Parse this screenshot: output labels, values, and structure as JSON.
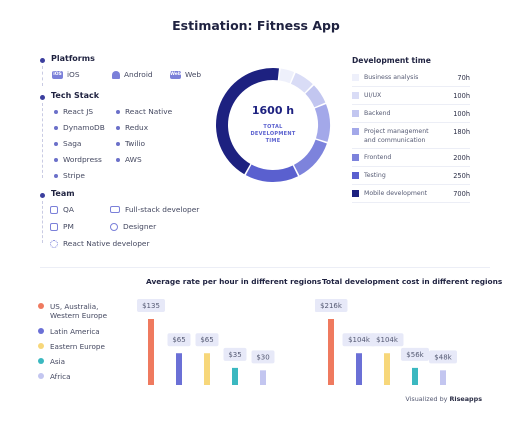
{
  "title": "Estimation: Fitness App",
  "platforms": {
    "heading": "Platforms",
    "items": [
      {
        "label": "iOS",
        "badge": "iOS",
        "icon": "ios-badge-icon"
      },
      {
        "label": "Android",
        "icon": "android-icon"
      },
      {
        "label": "Web",
        "badge": "Web",
        "icon": "web-badge-icon"
      }
    ]
  },
  "tech_stack": {
    "heading": "Tech Stack",
    "items": [
      "React JS",
      "React Native",
      "DynamoDB",
      "Redux",
      "Saga",
      "Twilio",
      "Wordpress",
      "AWS",
      "Stripe"
    ]
  },
  "team": {
    "heading": "Team",
    "items": [
      {
        "label": "QA",
        "icon": "qa-icon"
      },
      {
        "label": "Full-stack developer",
        "icon": "monitor-icon"
      },
      {
        "label": "PM",
        "icon": "pm-icon"
      },
      {
        "label": "Designer",
        "icon": "designer-icon"
      },
      {
        "label": "React Native developer",
        "icon": "react-icon"
      }
    ]
  },
  "donut": {
    "total": "1600 h",
    "caption_line1": "TOTAL",
    "caption_line2": "DEVELOPMENT",
    "caption_line3": "TIME"
  },
  "development_time": {
    "heading": "Development time",
    "rows": [
      {
        "label": "Business analysis",
        "value": "70h",
        "hours": 70,
        "color": "#eef0fb"
      },
      {
        "label": "UI/UX",
        "value": "100h",
        "hours": 100,
        "color": "#d9dcf6"
      },
      {
        "label": "Backend",
        "value": "100h",
        "hours": 100,
        "color": "#c2c6f0"
      },
      {
        "label": "Project management and communication",
        "value": "180h",
        "hours": 180,
        "color": "#a3a8e9"
      },
      {
        "label": "Frontend",
        "value": "200h",
        "hours": 200,
        "color": "#7d83dc"
      },
      {
        "label": "Testing",
        "value": "250h",
        "hours": 250,
        "color": "#5a60cf"
      },
      {
        "label": "Mobile development",
        "value": "700h",
        "hours": 700,
        "color": "#1d2180"
      }
    ]
  },
  "regions": [
    {
      "label": "US, Australia, Western Europe",
      "color": "#ef7a5f"
    },
    {
      "label": "Latin America",
      "color": "#6b70d6"
    },
    {
      "label": "Eastern Europe",
      "color": "#f7d77a"
    },
    {
      "label": "Asia",
      "color": "#3bb8c0"
    },
    {
      "label": "Africa",
      "color": "#c3c6f0"
    }
  ],
  "credit": {
    "prefix": "Visualized by",
    "brand": "Riseapps"
  },
  "chart_data": [
    {
      "type": "pie",
      "title": "TOTAL DEVELOPMENT TIME",
      "labels": [
        "Business analysis",
        "UI/UX",
        "Backend",
        "Project management and communication",
        "Frontend",
        "Testing",
        "Mobile development"
      ],
      "values": [
        70,
        100,
        100,
        180,
        200,
        250,
        700
      ]
    },
    {
      "type": "bar",
      "title": "Average rate per hour in different regions",
      "categories": [
        "US, Australia, Western Europe",
        "Latin America",
        "Eastern Europe",
        "Asia",
        "Africa"
      ],
      "values": [
        135,
        65,
        65,
        35,
        30
      ],
      "data_labels": [
        "$135",
        "$65",
        "$65",
        "$35",
        "$30"
      ],
      "ylim": [
        0,
        135
      ]
    },
    {
      "type": "bar",
      "title": "Total development cost in different regions",
      "categories": [
        "US, Australia, Western Europe",
        "Latin America",
        "Eastern Europe",
        "Asia",
        "Africa"
      ],
      "values": [
        216,
        104,
        104,
        56,
        48
      ],
      "data_labels": [
        "$216k",
        "$104k",
        "$104k",
        "$56k",
        "$48k"
      ],
      "ylim": [
        0,
        216
      ]
    }
  ]
}
